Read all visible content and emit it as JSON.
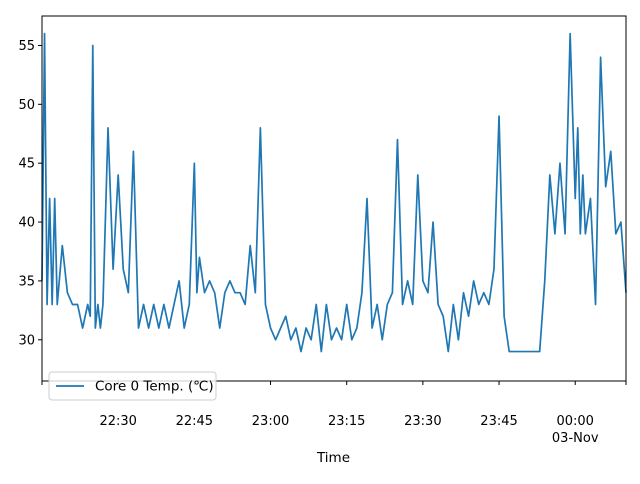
{
  "chart_data": {
    "type": "line",
    "title": "",
    "xlabel": "Time",
    "ylabel": "",
    "x_range": [
      "22:15",
      "00:10"
    ],
    "ylim": [
      26.5,
      57.5
    ],
    "grid": false,
    "legend_position": "lower-left",
    "line_color": "#1f77b4",
    "x_ticks": [
      {
        "t": "22:30",
        "label": "22:30",
        "sublabel": ""
      },
      {
        "t": "22:45",
        "label": "22:45",
        "sublabel": ""
      },
      {
        "t": "23:00",
        "label": "23:00",
        "sublabel": ""
      },
      {
        "t": "23:15",
        "label": "23:15",
        "sublabel": ""
      },
      {
        "t": "23:30",
        "label": "23:30",
        "sublabel": ""
      },
      {
        "t": "23:45",
        "label": "23:45",
        "sublabel": ""
      },
      {
        "t": "00:00",
        "label": "00:00",
        "sublabel": "03-Nov"
      }
    ],
    "y_ticks": [
      30,
      35,
      40,
      45,
      50,
      55
    ],
    "series": [
      {
        "name": "Core 0 Temp. (℃)",
        "color": "#1f77b4",
        "x": [
          "22:15",
          "22:15:30",
          "22:16",
          "22:16:30",
          "22:17",
          "22:17:30",
          "22:18",
          "22:19",
          "22:20",
          "22:21",
          "22:22",
          "22:23",
          "22:24",
          "22:24:30",
          "22:25",
          "22:25:30",
          "22:26",
          "22:26:30",
          "22:27",
          "22:28",
          "22:29",
          "22:30",
          "22:31",
          "22:32",
          "22:33",
          "22:34",
          "22:35",
          "22:36",
          "22:37",
          "22:38",
          "22:39",
          "22:40",
          "22:41",
          "22:42",
          "22:43",
          "22:44",
          "22:45",
          "22:45:30",
          "22:46",
          "22:47",
          "22:48",
          "22:49",
          "22:50",
          "22:51",
          "22:52",
          "22:53",
          "22:54",
          "22:55",
          "22:56",
          "22:57",
          "22:58",
          "22:59",
          "23:00",
          "23:01",
          "23:02",
          "23:03",
          "23:04",
          "23:05",
          "23:06",
          "23:07",
          "23:08",
          "23:09",
          "23:10",
          "23:11",
          "23:12",
          "23:13",
          "23:14",
          "23:15",
          "23:16",
          "23:17",
          "23:18",
          "23:19",
          "23:20",
          "23:21",
          "23:22",
          "23:23",
          "23:24",
          "23:25",
          "23:26",
          "23:27",
          "23:28",
          "23:29",
          "23:30",
          "23:31",
          "23:32",
          "23:33",
          "23:34",
          "23:35",
          "23:36",
          "23:37",
          "23:38",
          "23:39",
          "23:40",
          "23:41",
          "23:42",
          "23:43",
          "23:44",
          "23:45",
          "23:46",
          "23:47",
          "23:48",
          "23:49",
          "23:50",
          "23:51",
          "23:52",
          "23:53",
          "23:54",
          "23:55",
          "23:56",
          "23:57",
          "23:58",
          "23:59",
          "00:00",
          "00:00:30",
          "00:01",
          "00:01:30",
          "00:02",
          "00:03",
          "00:04",
          "00:05",
          "00:06",
          "00:07",
          "00:08",
          "00:09",
          "00:10"
        ],
        "values": [
          35,
          56,
          33,
          42,
          33,
          42,
          33,
          38,
          34,
          33,
          33,
          31,
          33,
          32,
          55,
          31,
          33,
          31,
          33,
          48,
          36,
          44,
          36,
          34,
          46,
          31,
          33,
          31,
          33,
          31,
          33,
          31,
          33,
          35,
          31,
          33,
          45,
          34,
          37,
          34,
          35,
          34,
          31,
          34,
          35,
          34,
          34,
          33,
          38,
          34,
          48,
          33,
          31,
          30,
          31,
          32,
          30,
          31,
          29,
          31,
          30,
          33,
          29,
          33,
          30,
          31,
          30,
          33,
          30,
          31,
          34,
          42,
          31,
          33,
          30,
          33,
          34,
          47,
          33,
          35,
          33,
          44,
          35,
          34,
          40,
          33,
          32,
          29,
          33,
          30,
          34,
          32,
          35,
          33,
          34,
          33,
          36,
          49,
          32,
          29,
          29,
          29,
          29,
          29,
          29,
          29,
          35,
          44,
          39,
          45,
          39,
          56,
          42,
          48,
          39,
          44,
          39,
          42,
          33,
          54,
          43,
          46,
          39,
          40,
          34
        ]
      }
    ]
  }
}
